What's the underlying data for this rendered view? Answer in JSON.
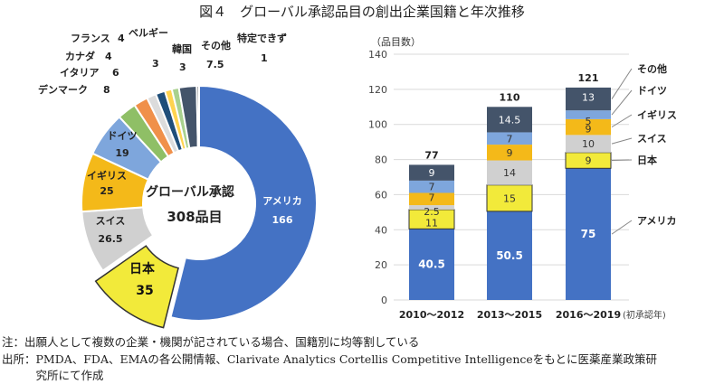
{
  "title": "図４　グローバル承認品目の創出企業国籍と年次推移",
  "notes": [
    "注：出願人として複数の企業・機関が記されている場合、国籍別に均等割している",
    "出所：PMDA、FDA、EMAの各公開情報、Clarivate Analytics Cortellis Competitive Intelligenceをもとに医薬産業政策研",
    "　　　究所にて作成"
  ],
  "chart_data": [
    {
      "type": "pie",
      "donut": true,
      "center_label": [
        "グローバル承認",
        "308品目"
      ],
      "slices": [
        {
          "label": "アメリカ",
          "value": 166,
          "color": "#4472c4"
        },
        {
          "label": "日本",
          "value": 35,
          "color": "#f2ea3a",
          "exploded": true
        },
        {
          "label": "スイス",
          "value": 26.5,
          "color": "#d0d0d0"
        },
        {
          "label": "イギリス",
          "value": 25,
          "color": "#f4b919"
        },
        {
          "label": "ドイツ",
          "value": 19,
          "color": "#7ea6dc"
        },
        {
          "label": "デンマーク",
          "value": 8,
          "color": "#8fbf66"
        },
        {
          "label": "イタリア",
          "value": 6,
          "color": "#f0904a"
        },
        {
          "label": "カナダ",
          "value": 4,
          "color": "#dcdcdc"
        },
        {
          "label": "フランス",
          "value": 4,
          "color": "#1f4e79"
        },
        {
          "label": "ベルギー",
          "value": 3,
          "color": "#ffd34f"
        },
        {
          "label": "韓国",
          "value": 3,
          "color": "#a9d18e"
        },
        {
          "label": "その他",
          "value": 7.5,
          "color": "#44546a"
        },
        {
          "label": "特定できず",
          "value": 1,
          "color": "#7f7f7f"
        }
      ]
    },
    {
      "type": "bar",
      "stacked": true,
      "ylabel": "（品目数）",
      "xlabel": "(初承認年)",
      "ylim": [
        0,
        140
      ],
      "yticks": [
        0,
        20,
        40,
        60,
        80,
        100,
        120,
        140
      ],
      "grid": true,
      "categories": [
        "2010～2012",
        "2013～2015",
        "2016～2019"
      ],
      "totals": [
        77,
        110,
        121
      ],
      "series": [
        {
          "name": "アメリカ",
          "values": [
            40.5,
            50.5,
            75
          ],
          "color": "#4472c4"
        },
        {
          "name": "日本",
          "values": [
            11,
            15,
            9
          ],
          "color": "#f2ea3a"
        },
        {
          "name": "スイス",
          "values": [
            2.5,
            14,
            10
          ],
          "color": "#d0d0d0"
        },
        {
          "name": "イギリス",
          "values": [
            7,
            9,
            9
          ],
          "color": "#f4b919"
        },
        {
          "name": "ドイツ",
          "values": [
            7,
            7,
            5
          ],
          "color": "#7ea6dc"
        },
        {
          "name": "その他",
          "values": [
            9,
            14.5,
            13
          ],
          "color": "#44546a"
        }
      ]
    }
  ]
}
